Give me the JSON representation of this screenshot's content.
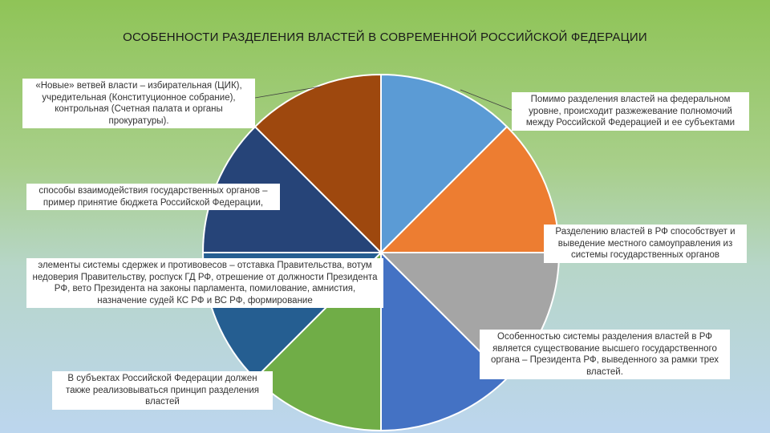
{
  "title": "ОСОБЕННОСТИ РАЗДЕЛЕНИЯ ВЛАСТЕЙ В СОВРЕМЕННОЙ РОССИЙСКОЙ ФЕДЕРАЦИИ",
  "chart_data": {
    "type": "pie",
    "title": "ОСОБЕННОСТИ РАЗДЕЛЕНИЯ ВЛАСТЕЙ В СОВРЕМЕННОЙ РОССИЙСКОЙ ФЕДЕРАЦИИ",
    "slices": [
      {
        "label": "Помимо разделения властей на федеральном уровне, происходит разжежевание полномочий между Российской Федерацией и ее субъектами",
        "value": 1,
        "color": "#5b9bd5"
      },
      {
        "label": "Разделению властей в РФ способствует и выведение местного самоуправления из системы государственных органов",
        "value": 1,
        "color": "#ed7d31"
      },
      {
        "label": "Особенностью системы разделения властей в РФ является существование высшего государственного органа – Президента РФ, выведенного за рамки трех властей.",
        "value": 1,
        "color": "#a5a5a5"
      },
      {
        "label": "",
        "value": 1,
        "color": "#4472c4"
      },
      {
        "label": "В субъектах Российской Федерации должен также реализовываться принцип разделения властей",
        "value": 1,
        "color": "#70ad47"
      },
      {
        "label": "элементы системы сдержек и противовесов – отставка Правительства, вотум недоверия Правительству, роспуск ГД РФ, отрешение от должности Президента РФ, вето Президента на законы парламента, помилование, амнистия, назначение судей КС РФ и ВС РФ, формирование",
        "value": 1,
        "color": "#255e91"
      },
      {
        "label": "способы взаимодействия государственных органов – пример принятие бюджета Российской Федерации,",
        "value": 1,
        "color": "#264478"
      },
      {
        "label": "«Новые» ветвей власти – избирательная (ЦИК), учредительная (Конституционное собрание), контрольная (Счетная палата и органы прокуратуры).",
        "value": 1,
        "color": "#9e480e"
      }
    ]
  }
}
